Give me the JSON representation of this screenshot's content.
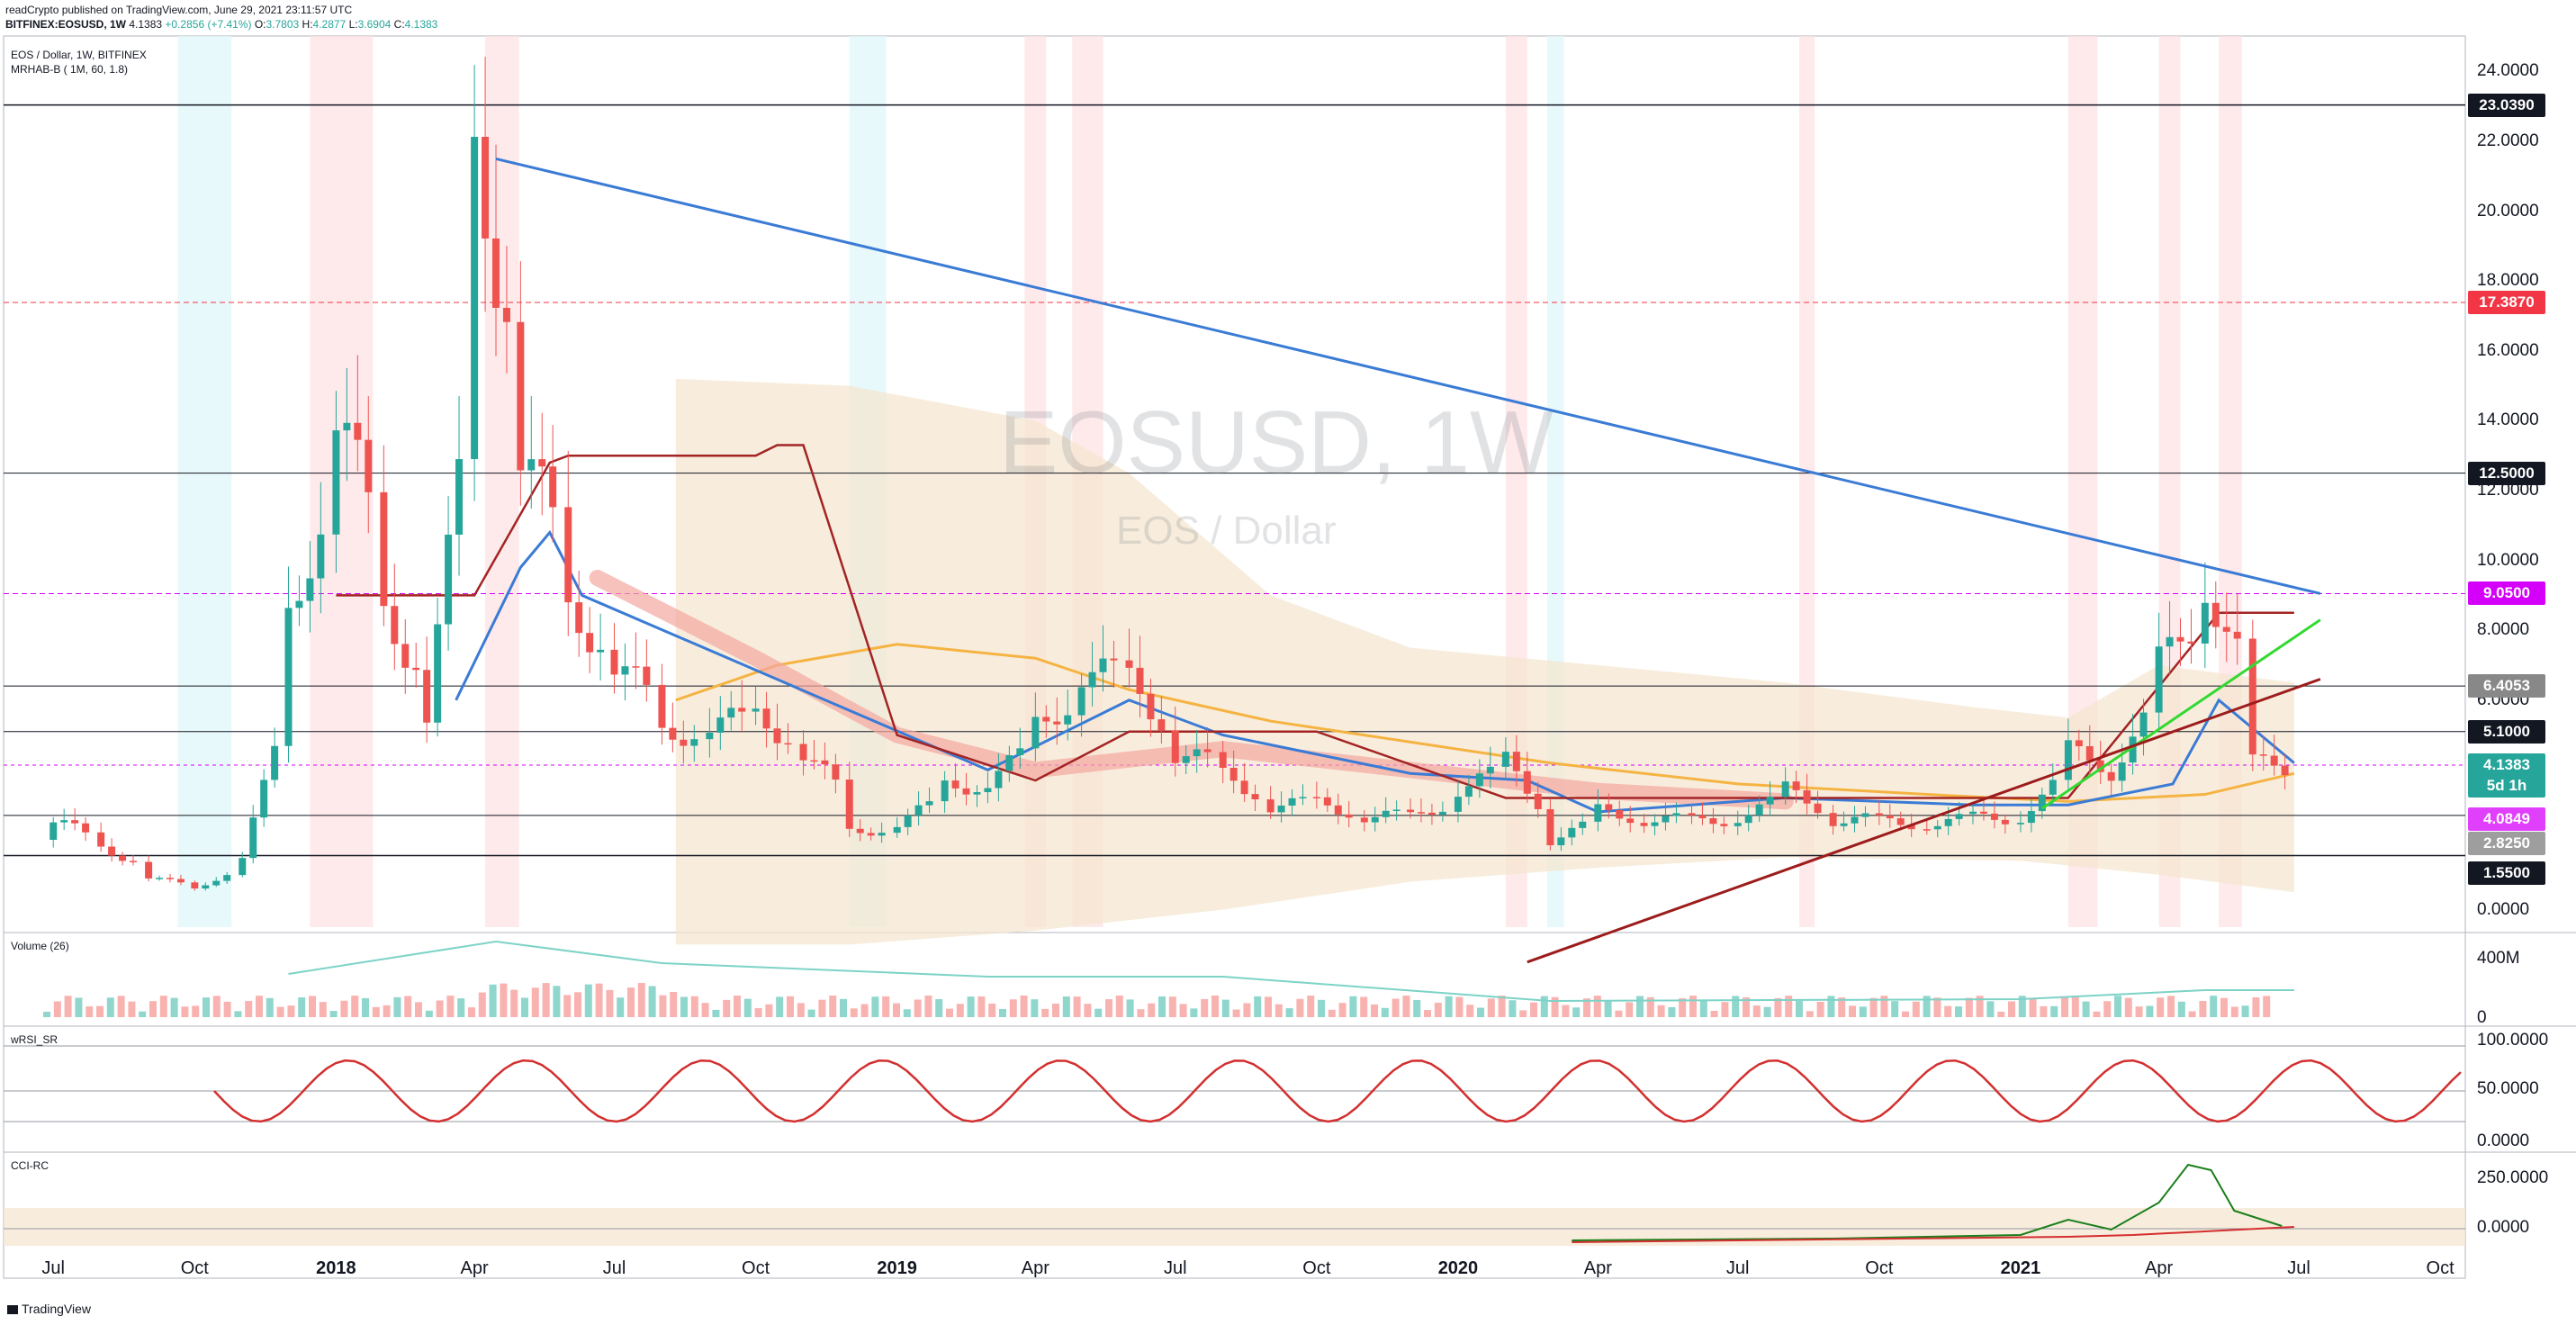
{
  "header": {
    "line1": "readCrypto published on TradingView.com, June 29, 2021 23:11:57 UTC",
    "symbol": "BITFINEX:EOSUSD, 1W",
    "price": "4.1383",
    "change": "+0.2856 (+7.41%)",
    "o_label": "O:",
    "o": "3.7803",
    "h_label": "H:",
    "h": "4.2877",
    "l_label": "L:",
    "l": "3.6904",
    "c_label": "C:",
    "c": "4.1383"
  },
  "legend": {
    "pair": "EOS / Dollar, 1W, BITFINEX",
    "indicator": "MRHAB-B ( 1M, 60, 1.8)"
  },
  "watermark": {
    "symbol": "EOSUSD, 1W",
    "name": "EOS / Dollar"
  },
  "panes": {
    "volume": "Volume (26)",
    "wrsi": "wRSI_SR",
    "cci": "CCI-RC"
  },
  "footer": {
    "brand": "TradingView"
  },
  "colors": {
    "up": "#26a69a",
    "down": "#ef5350",
    "blue_trend": "#3a7bd5",
    "green_trend": "#32d932",
    "red_trend": "#9c1c1c",
    "orange_ma": "#f5b342",
    "teal_tag": "#26a69a",
    "magenta_tag": "#e040fb"
  },
  "price_tags": [
    {
      "label": "23.0390",
      "value": 23.039,
      "bg": "#131722"
    },
    {
      "label": "17.3870",
      "value": 17.387,
      "bg": "#f23645"
    },
    {
      "label": "12.5000",
      "value": 12.5,
      "bg": "#131722"
    },
    {
      "label": "9.0500",
      "value": 9.05,
      "bg": "#d500f9"
    },
    {
      "label": "6.4053",
      "value": 6.4053,
      "bg": "#888888"
    },
    {
      "label": "5.1000",
      "value": 5.1,
      "bg": "#131722"
    },
    {
      "label": "4.1383",
      "value": 4.1383,
      "bg": "#26a69a"
    },
    {
      "label": "5d 1h",
      "value": 3.55,
      "bg": "#26a69a"
    },
    {
      "label": "4.0849",
      "value": 2.58,
      "bg": "#e040fb"
    },
    {
      "label": "2.8250",
      "value": 1.9,
      "bg": "#9e9e9e"
    },
    {
      "label": "1.5500",
      "value": 1.055,
      "bg": "#131722"
    }
  ],
  "price_ticks": [
    "24.0000",
    "22.0000",
    "20.0000",
    "18.0000",
    "16.0000",
    "14.0000",
    "12.0000",
    "10.0000",
    "8.0000",
    "6.0000",
    "4.0000",
    "2.0000",
    "0.0000"
  ],
  "vol_ticks": [
    "400M",
    "0"
  ],
  "rsi_ticks": [
    "100.0000",
    "50.0000",
    "0.0000"
  ],
  "cci_ticks": [
    "250.0000",
    "0.0000"
  ],
  "x_ticks": [
    {
      "label": "Jul",
      "bold": false
    },
    {
      "label": "Oct",
      "bold": false
    },
    {
      "label": "2018",
      "bold": true
    },
    {
      "label": "Apr",
      "bold": false
    },
    {
      "label": "Jul",
      "bold": false
    },
    {
      "label": "Oct",
      "bold": false
    },
    {
      "label": "2019",
      "bold": true
    },
    {
      "label": "Apr",
      "bold": false
    },
    {
      "label": "Jul",
      "bold": false
    },
    {
      "label": "Oct",
      "bold": false
    },
    {
      "label": "2020",
      "bold": true
    },
    {
      "label": "Apr",
      "bold": false
    },
    {
      "label": "Jul",
      "bold": false
    },
    {
      "label": "Oct",
      "bold": false
    },
    {
      "label": "2021",
      "bold": true
    },
    {
      "label": "Apr",
      "bold": false
    },
    {
      "label": "Jul",
      "bold": false
    },
    {
      "label": "Oct",
      "bold": false
    }
  ],
  "chart_data": {
    "type": "candlestick",
    "title": "EOS / Dollar, 1W, BITFINEX",
    "x_range": [
      "2017-06",
      "2021-10"
    ],
    "ylim": [
      -0.5,
      24.5
    ],
    "horizontal_levels": [
      23.039,
      17.387,
      12.5,
      9.05,
      6.4053,
      5.1,
      4.1383,
      1.55
    ],
    "trendlines": [
      {
        "color": "blue",
        "from": [
          "2018-04",
          21.5
        ],
        "to": [
          "2021-07",
          9.05
        ]
      },
      {
        "color": "green",
        "from": [
          "2021-01",
          2.9
        ],
        "to": [
          "2021-07",
          8.3
        ]
      },
      {
        "color": "darkred",
        "from": [
          "2020-02",
          -1.5
        ],
        "to": [
          "2021-07",
          6.6
        ]
      }
    ],
    "close_series": [
      {
        "x": "2017-07",
        "close": 2.5
      },
      {
        "x": "2017-08",
        "close": 1.8
      },
      {
        "x": "2017-09",
        "close": 0.9
      },
      {
        "x": "2017-10",
        "close": 0.6
      },
      {
        "x": "2017-11",
        "close": 1.5
      },
      {
        "x": "2017-12",
        "close": 8.5
      },
      {
        "x": "2018-01",
        "close": 14.0
      },
      {
        "x": "2018-02",
        "close": 8.5
      },
      {
        "x": "2018-03",
        "close": 5.5
      },
      {
        "x": "2018-04",
        "close": 21.5
      },
      {
        "x": "2018-05",
        "close": 13.0
      },
      {
        "x": "2018-06",
        "close": 8.5
      },
      {
        "x": "2018-07",
        "close": 7.0
      },
      {
        "x": "2018-08",
        "close": 5.0
      },
      {
        "x": "2018-09",
        "close": 5.3
      },
      {
        "x": "2018-10",
        "close": 5.5
      },
      {
        "x": "2018-11",
        "close": 4.5
      },
      {
        "x": "2018-12",
        "close": 2.2
      },
      {
        "x": "2019-01",
        "close": 2.5
      },
      {
        "x": "2019-02",
        "close": 3.5
      },
      {
        "x": "2019-03",
        "close": 3.7
      },
      {
        "x": "2019-04",
        "close": 5.2
      },
      {
        "x": "2019-05",
        "close": 6.8
      },
      {
        "x": "2019-06",
        "close": 6.5
      },
      {
        "x": "2019-07",
        "close": 4.5
      },
      {
        "x": "2019-08",
        "close": 3.8
      },
      {
        "x": "2019-09",
        "close": 3.0
      },
      {
        "x": "2019-10",
        "close": 3.0
      },
      {
        "x": "2019-11",
        "close": 2.7
      },
      {
        "x": "2019-12",
        "close": 2.6
      },
      {
        "x": "2020-01",
        "close": 3.5
      },
      {
        "x": "2020-02",
        "close": 4.2
      },
      {
        "x": "2020-03",
        "close": 2.0
      },
      {
        "x": "2020-04",
        "close": 2.8
      },
      {
        "x": "2020-05",
        "close": 2.6
      },
      {
        "x": "2020-06",
        "close": 2.5
      },
      {
        "x": "2020-07",
        "close": 2.7
      },
      {
        "x": "2020-08",
        "close": 3.4
      },
      {
        "x": "2020-09",
        "close": 2.6
      },
      {
        "x": "2020-10",
        "close": 2.5
      },
      {
        "x": "2020-11",
        "close": 2.5
      },
      {
        "x": "2020-12",
        "close": 2.6
      },
      {
        "x": "2021-01",
        "close": 2.7
      },
      {
        "x": "2021-02",
        "close": 4.5
      },
      {
        "x": "2021-03",
        "close": 4.0
      },
      {
        "x": "2021-04",
        "close": 7.0
      },
      {
        "x": "2021-05",
        "close": 9.5
      },
      {
        "x": "2021-06",
        "close": 4.1383
      }
    ]
  }
}
